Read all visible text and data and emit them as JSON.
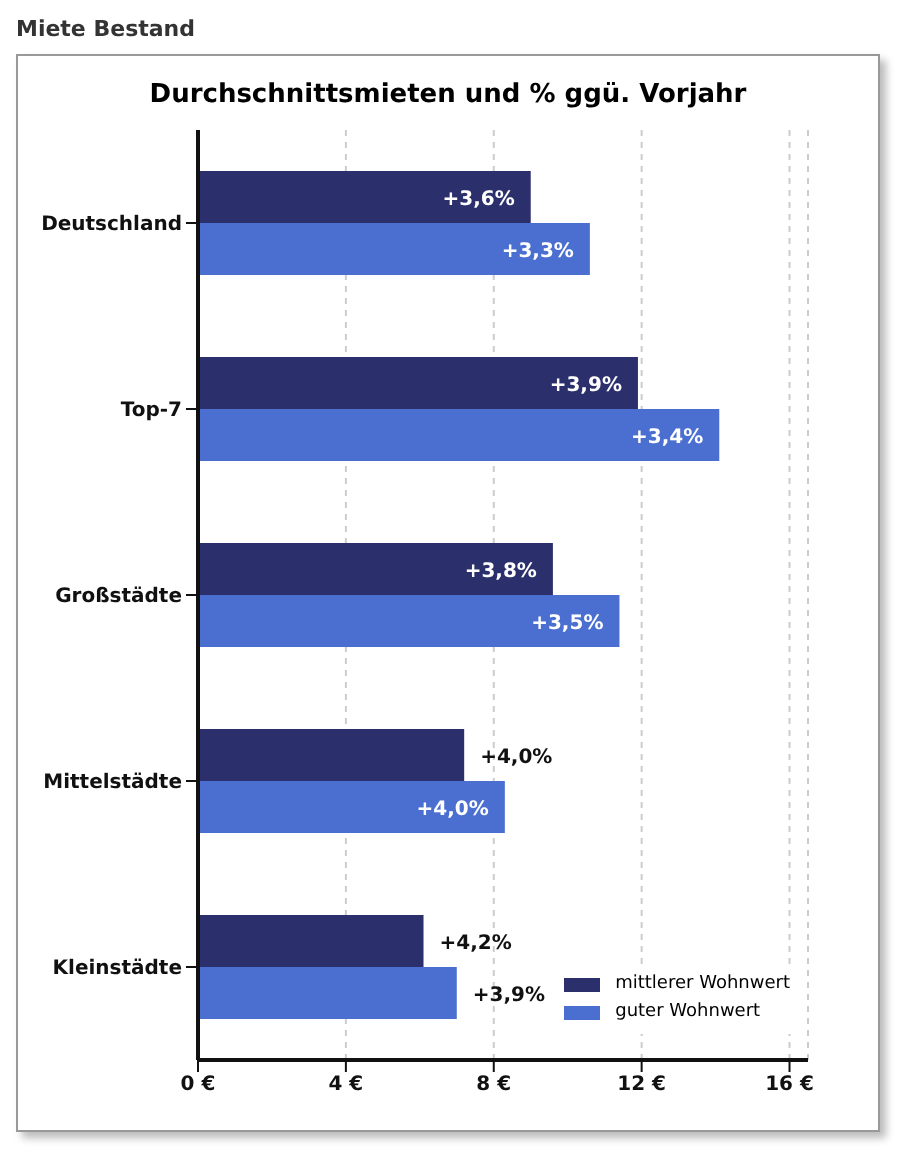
{
  "chart_data": {
    "type": "bar",
    "orientation": "horizontal",
    "title": "Durchschnittsmieten und % ggü. Vorjahr",
    "annotations": [
      "Miete Bestand",
      {
        "text": "+3,6%",
        "x": 9.0,
        "y": "Deutschland"
      },
      {
        "text": "+3,3%",
        "x": 10.6,
        "y": "Deutschland"
      },
      {
        "text": "+3,9%",
        "x": 11.9,
        "y": "Top-7"
      },
      {
        "text": "+3,4%",
        "x": 14.1,
        "y": "Top-7"
      },
      {
        "text": "+3,8%",
        "x": 9.6,
        "y": "Großstädte"
      },
      {
        "text": "+3,5%",
        "x": 11.4,
        "y": "Großstädte"
      },
      {
        "text": "+4,0%",
        "x": 7.2,
        "y": "Mittelstädte"
      },
      {
        "text": "+4,0%",
        "x": 8.3,
        "y": "Mittelstädte"
      },
      {
        "text": "+4,2%",
        "x": 6.1,
        "y": "Kleinstädte"
      },
      {
        "text": "+3,9%",
        "x": 7.0,
        "y": "Kleinstädte"
      }
    ],
    "categories": [
      "Deutschland",
      "Top-7",
      "Großstädte",
      "Mittelstädte",
      "Kleinstädte"
    ],
    "series": [
      {
        "name": "mittlerer Wohnwert",
        "color": "#2b2f6b",
        "values": [
          9.0,
          11.9,
          9.6,
          7.2,
          6.1
        ]
      },
      {
        "name": "guter Wohnwert",
        "color": "#4a6fd0",
        "values": [
          10.6,
          14.1,
          11.4,
          8.3,
          7.0
        ]
      }
    ],
    "xlim": [
      0,
      16.5
    ],
    "xticks": [
      {
        "value": 0,
        "label": "0 €"
      },
      {
        "value": 4,
        "label": "4 €"
      },
      {
        "value": 8,
        "label": "8 €"
      },
      {
        "value": 12,
        "label": "12 €"
      },
      {
        "value": 16,
        "label": "16 €"
      }
    ],
    "grid": "x",
    "legend": "bottom right"
  }
}
